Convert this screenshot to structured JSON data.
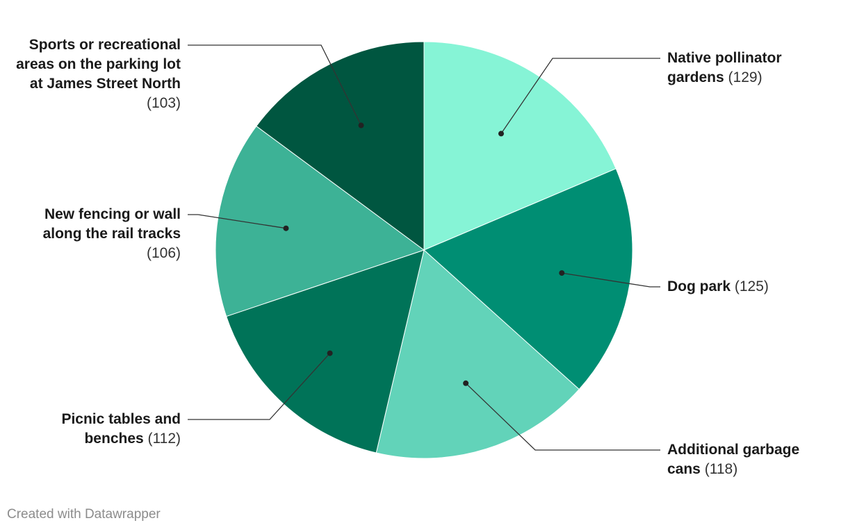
{
  "chart_data": {
    "type": "pie",
    "start_angle_deg": 0,
    "direction": "clockwise",
    "slices": [
      {
        "label": "Native pollinator gardens",
        "value": 129,
        "value_text": "(129)",
        "color": "#86f4d6",
        "side": "right"
      },
      {
        "label": "Dog park",
        "value": 125,
        "value_text": "(125)",
        "color": "#008e73",
        "side": "right"
      },
      {
        "label": "Additional garbage cans",
        "value": 118,
        "value_text": "(118)",
        "color": "#62d3b9",
        "side": "right"
      },
      {
        "label": "Picnic tables and benches",
        "value": 112,
        "value_text": "(112)",
        "color": "#007358",
        "side": "left"
      },
      {
        "label": "New fencing or wall along the rail tracks",
        "value": 106,
        "value_text": "(106)",
        "color": "#3db296",
        "side": "left"
      },
      {
        "label": "Sports or recreational areas on the parking lot at James Street North",
        "value": 103,
        "value_text": "(103)",
        "color": "#005640",
        "side": "left"
      }
    ]
  },
  "footer": {
    "credit": "Created with Datawrapper"
  }
}
